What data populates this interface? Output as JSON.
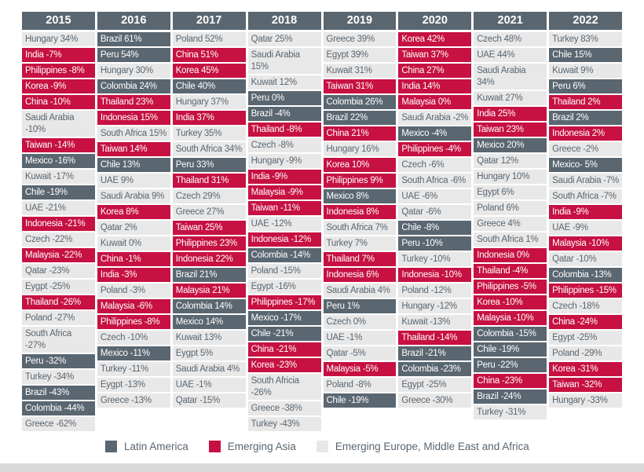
{
  "chart_data": {
    "type": "table",
    "description": "Annual emerging markets performance by country, 2015-2022, color-coded by region",
    "header_bg": "#5a6670",
    "header_text_color": "#ffffff",
    "years": [
      "2015",
      "2016",
      "2017",
      "2018",
      "2019",
      "2020",
      "2021",
      "2022"
    ],
    "legend": [
      {
        "key": "latam",
        "label": "Latin America",
        "color": "#5a6670",
        "text_color": "#ffffff"
      },
      {
        "key": "asia",
        "label": "Emerging Asia",
        "color": "#c61142",
        "text_color": "#ffffff"
      },
      {
        "key": "emea",
        "label": "Emerging Europe, Middle East and Africa",
        "color": "#e8e8e8",
        "text_color": "#5a6670"
      }
    ],
    "columns": [
      {
        "year": "2015",
        "cells": [
          [
            "Hungary 34%",
            "emea"
          ],
          [
            "India -7%",
            "asia"
          ],
          [
            "Philippines -8%",
            "asia"
          ],
          [
            "Korea -9%",
            "asia"
          ],
          [
            "China -10%",
            "asia"
          ],
          [
            "Saudi Arabia -10%",
            "emea"
          ],
          [
            "Taiwan -14%",
            "asia"
          ],
          [
            "Mexico -16%",
            "latam"
          ],
          [
            "Kuwait -17%",
            "emea"
          ],
          [
            "Chile -19%",
            "latam"
          ],
          [
            "UAE -21%",
            "emea"
          ],
          [
            "Indonesia -21%",
            "asia"
          ],
          [
            "Czech -22%",
            "emea"
          ],
          [
            "Malaysia -22%",
            "asia"
          ],
          [
            "Qatar -23%",
            "emea"
          ],
          [
            "Eygpt -25%",
            "emea"
          ],
          [
            "Thailand -26%",
            "asia"
          ],
          [
            "Poland -27%",
            "emea"
          ],
          [
            "South Africa -27%",
            "emea"
          ],
          [
            "Peru -32%",
            "latam"
          ],
          [
            "Turkey -34%",
            "emea"
          ],
          [
            "Brazil -43%",
            "latam"
          ],
          [
            "Colombia -44%",
            "latam"
          ],
          [
            "Greece -62%",
            "emea"
          ]
        ]
      },
      {
        "year": "2016",
        "cells": [
          [
            "Brazil 61%",
            "latam"
          ],
          [
            "Peru 54%",
            "latam"
          ],
          [
            "Hungary 30%",
            "emea"
          ],
          [
            "Colombia 24%",
            "latam"
          ],
          [
            "Thailand 23%",
            "asia"
          ],
          [
            "Indonesia 15%",
            "asia"
          ],
          [
            "South Africa 15%",
            "emea"
          ],
          [
            "Taiwan 14%",
            "asia"
          ],
          [
            "Chile 13%",
            "latam"
          ],
          [
            "UAE 9%",
            "emea"
          ],
          [
            "Saudi Arabia 9%",
            "emea"
          ],
          [
            "Korea 8%",
            "asia"
          ],
          [
            "Qatar 2%",
            "emea"
          ],
          [
            "Kuwait 0%",
            "emea"
          ],
          [
            "China -1%",
            "asia"
          ],
          [
            "India -3%",
            "asia"
          ],
          [
            "Poland -3%",
            "emea"
          ],
          [
            "Malaysia -6%",
            "asia"
          ],
          [
            "Philippines -8%",
            "asia"
          ],
          [
            "Czech -10%",
            "emea"
          ],
          [
            "Mexico -11%",
            "latam"
          ],
          [
            "Turkey -11%",
            "emea"
          ],
          [
            "Eygpt -13%",
            "emea"
          ],
          [
            "Greece -13%",
            "emea"
          ]
        ]
      },
      {
        "year": "2017",
        "cells": [
          [
            "Poland 52%",
            "emea"
          ],
          [
            "China 51%",
            "asia"
          ],
          [
            "Korea 45%",
            "asia"
          ],
          [
            "Chile 40%",
            "latam"
          ],
          [
            "Hungary 37%",
            "emea"
          ],
          [
            "India 37%",
            "asia"
          ],
          [
            "Turkey 35%",
            "emea"
          ],
          [
            "South Africa 34%",
            "emea"
          ],
          [
            "Peru 33%",
            "latam"
          ],
          [
            "Thailand 31%",
            "asia"
          ],
          [
            "Czech 29%",
            "emea"
          ],
          [
            "Greece 27%",
            "emea"
          ],
          [
            "Taiwan 25%",
            "asia"
          ],
          [
            "Philippines 23%",
            "asia"
          ],
          [
            "Indonesia 22%",
            "asia"
          ],
          [
            "Brazil 21%",
            "latam"
          ],
          [
            "Malaysia 21%",
            "asia"
          ],
          [
            "Colombia 14%",
            "latam"
          ],
          [
            "Mexico 14%",
            "latam"
          ],
          [
            "Kuwait 13%",
            "emea"
          ],
          [
            "Eygpt 5%",
            "emea"
          ],
          [
            "Saudi Arabia 4%",
            "emea"
          ],
          [
            "UAE -1%",
            "emea"
          ],
          [
            "Qatar -15%",
            "emea"
          ]
        ]
      },
      {
        "year": "2018",
        "cells": [
          [
            "Qatar 25%",
            "emea"
          ],
          [
            "Saudi Arabia 15%",
            "emea"
          ],
          [
            "Kuwait 12%",
            "emea"
          ],
          [
            "Peru 0%",
            "latam"
          ],
          [
            "Brazil -4%",
            "latam"
          ],
          [
            "Thailand -8%",
            "asia"
          ],
          [
            "Czech -8%",
            "emea"
          ],
          [
            "Hungary -9%",
            "emea"
          ],
          [
            "India -9%",
            "asia"
          ],
          [
            "Malaysia -9%",
            "asia"
          ],
          [
            "Taiwan -11%",
            "asia"
          ],
          [
            "UAE -12%",
            "emea"
          ],
          [
            "Indonesia -12%",
            "asia"
          ],
          [
            "Colombia -14%",
            "latam"
          ],
          [
            "Poland -15%",
            "emea"
          ],
          [
            "Egypt -16%",
            "emea"
          ],
          [
            "Philippines -17%",
            "asia"
          ],
          [
            "Mexico -17%",
            "latam"
          ],
          [
            "Chile -21%",
            "latam"
          ],
          [
            "China -21%",
            "asia"
          ],
          [
            "Korea -23%",
            "asia"
          ],
          [
            "South Africia -26%",
            "emea"
          ],
          [
            "Greece -38%",
            "emea"
          ],
          [
            "Turkey -43%",
            "emea"
          ]
        ]
      },
      {
        "year": "2019",
        "cells": [
          [
            "Greece 39%",
            "emea"
          ],
          [
            "Egypt 39%",
            "emea"
          ],
          [
            "Kuwait 31%",
            "emea"
          ],
          [
            "Taiwan 31%",
            "asia"
          ],
          [
            "Colombia 26%",
            "latam"
          ],
          [
            "Brazil 22%",
            "latam"
          ],
          [
            "China 21%",
            "asia"
          ],
          [
            "Hungary 16%",
            "emea"
          ],
          [
            "Korea 10%",
            "asia"
          ],
          [
            "Philippines 9%",
            "asia"
          ],
          [
            "Mexico 8%",
            "latam"
          ],
          [
            "Indonesia 8%",
            "asia"
          ],
          [
            "South Africa 7%",
            "emea"
          ],
          [
            "Turkey 7%",
            "emea"
          ],
          [
            "Thailand 7%",
            "asia"
          ],
          [
            "Indonesia 6%",
            "asia"
          ],
          [
            "Saudi Arabia 4%",
            "emea"
          ],
          [
            "Peru 1%",
            "latam"
          ],
          [
            "Czech 0%",
            "emea"
          ],
          [
            "UAE -1%",
            "emea"
          ],
          [
            "Qatar -5%",
            "emea"
          ],
          [
            "Malaysia -5%",
            "asia"
          ],
          [
            "Poland -8%",
            "emea"
          ],
          [
            "Chile -19%",
            "latam"
          ]
        ]
      },
      {
        "year": "2020",
        "cells": [
          [
            "Korea 42%",
            "asia"
          ],
          [
            "Taiwan 37%",
            "asia"
          ],
          [
            "China 27%",
            "asia"
          ],
          [
            "India 14%",
            "asia"
          ],
          [
            "Malaysia 0%",
            "asia"
          ],
          [
            "Saudi Arabia -2%",
            "emea"
          ],
          [
            "Mexico -4%",
            "latam"
          ],
          [
            "Philippines -4%",
            "asia"
          ],
          [
            "Czech -6%",
            "emea"
          ],
          [
            "South Africa -6%",
            "emea"
          ],
          [
            "UAE -6%",
            "emea"
          ],
          [
            "Qatar -6%",
            "emea"
          ],
          [
            "Chile -8%",
            "latam"
          ],
          [
            "Peru -10%",
            "latam"
          ],
          [
            "Turkey -10%",
            "emea"
          ],
          [
            "Indonesia -10%",
            "asia"
          ],
          [
            "Poland -12%",
            "emea"
          ],
          [
            "Hungary -12%",
            "emea"
          ],
          [
            "Kuwait -13%",
            "emea"
          ],
          [
            "Thailand -14%",
            "asia"
          ],
          [
            "Brazil -21%",
            "latam"
          ],
          [
            "Colombia -23%",
            "latam"
          ],
          [
            "Egypt -25%",
            "emea"
          ],
          [
            "Greece -30%",
            "emea"
          ]
        ]
      },
      {
        "year": "2021",
        "cells": [
          [
            "Czech 48%",
            "emea"
          ],
          [
            "UAE 44%",
            "emea"
          ],
          [
            "Saudi Arabia 34%",
            "emea"
          ],
          [
            "Kuwait 27%",
            "emea"
          ],
          [
            "India 25%",
            "asia"
          ],
          [
            "Taiwan 23%",
            "asia"
          ],
          [
            "Mexico 20%",
            "latam"
          ],
          [
            "Qatar 12%",
            "emea"
          ],
          [
            "Hungary 10%",
            "emea"
          ],
          [
            "Egypt 6%",
            "emea"
          ],
          [
            "Poland 6%",
            "emea"
          ],
          [
            "Greece 4%",
            "emea"
          ],
          [
            "South Africa 1%",
            "emea"
          ],
          [
            "Indonesia 0%",
            "asia"
          ],
          [
            "Thailand -4%",
            "asia"
          ],
          [
            "Philippines -5%",
            "asia"
          ],
          [
            "Korea -10%",
            "asia"
          ],
          [
            "Malaysia -10%",
            "asia"
          ],
          [
            "Colombia -15%",
            "latam"
          ],
          [
            "Chile -19%",
            "latam"
          ],
          [
            "Peru -22%",
            "latam"
          ],
          [
            "China -23%",
            "asia"
          ],
          [
            "Brazil -24%",
            "latam"
          ],
          [
            "Turkey -31%",
            "emea"
          ]
        ]
      },
      {
        "year": "2022",
        "cells": [
          [
            "Turkey 83%",
            "emea"
          ],
          [
            "Chile 15%",
            "latam"
          ],
          [
            "Kuwait 9%",
            "emea"
          ],
          [
            "Peru 6%",
            "latam"
          ],
          [
            "Thailand 2%",
            "asia"
          ],
          [
            "Brazil 2%",
            "latam"
          ],
          [
            "Indonesia 2%",
            "asia"
          ],
          [
            "Greece -2%",
            "emea"
          ],
          [
            "Mexico- 5%",
            "latam"
          ],
          [
            "Saudi Arabia -7%",
            "emea"
          ],
          [
            "South Africa -7%",
            "emea"
          ],
          [
            "India -9%",
            "asia"
          ],
          [
            "UAE -9%",
            "emea"
          ],
          [
            "Malaysia -10%",
            "asia"
          ],
          [
            "Qatar -10%",
            "emea"
          ],
          [
            "Colombia -13%",
            "latam"
          ],
          [
            "Philippines -15%",
            "asia"
          ],
          [
            "Czech -18%",
            "emea"
          ],
          [
            "China -24%",
            "asia"
          ],
          [
            "Egypt -25%",
            "emea"
          ],
          [
            "Poland -29%",
            "emea"
          ],
          [
            "Korea -31%",
            "asia"
          ],
          [
            "Taiwan -32%",
            "asia"
          ],
          [
            "Hungary -33%",
            "emea"
          ]
        ]
      }
    ]
  }
}
